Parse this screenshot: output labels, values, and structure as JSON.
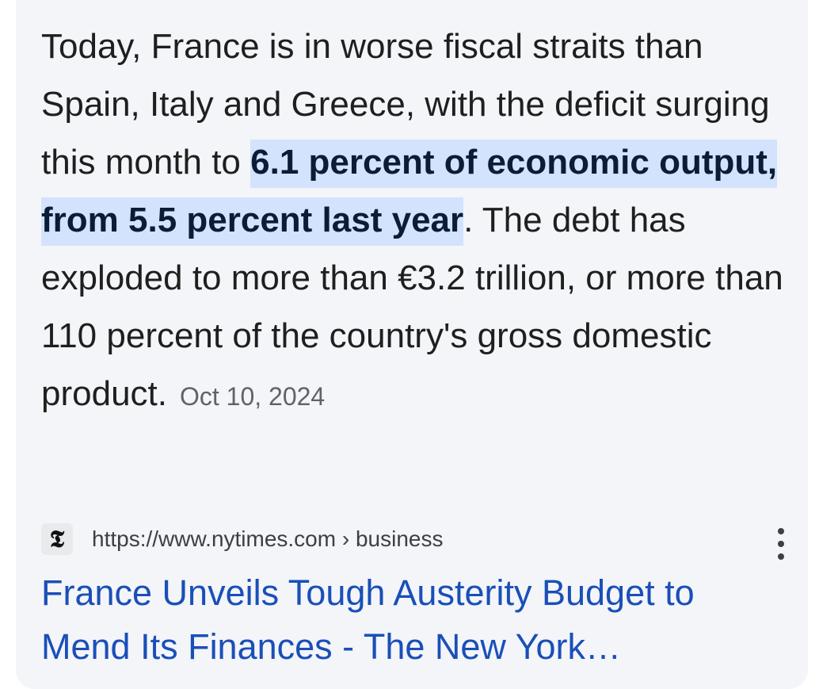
{
  "snippet": {
    "text_before": "Today, France is in worse fiscal straits than Spain, Italy and Greece, with the deficit surging this month to ",
    "highlight": "6.1 percent of economic output, from 5.5 percent last year",
    "text_after": ". The debt has exploded to more than €3.2 trillion, or more than 110 percent of the country's gross domestic product.",
    "date": "Oct 10, 2024"
  },
  "source": {
    "favicon_letter": "𝕿",
    "favicon_icon": "nyt-logo-icon",
    "url": "https://www.nytimes.com › business",
    "menu_icon": "more-vert-icon"
  },
  "result": {
    "title": "France Unveils Tough Austerity Budget to Mend Its Finances - The New York…"
  },
  "colors": {
    "card_background": "#f3f5f8",
    "highlight_background": "#d3e3fd",
    "link": "#1a4fb8",
    "date": "#5f6368"
  }
}
